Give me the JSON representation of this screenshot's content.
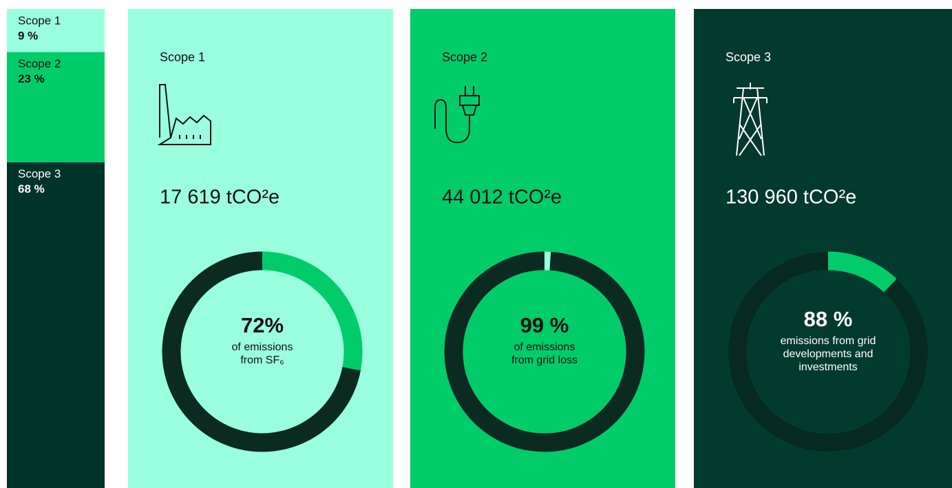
{
  "stack": {
    "segments": [
      {
        "label": "Scope 1",
        "value": 9,
        "value_label": "9 %"
      },
      {
        "label": "Scope 2",
        "value": 23,
        "value_label": "23 %"
      },
      {
        "label": "Scope 3",
        "value": 68,
        "value_label": "68 %"
      }
    ]
  },
  "cards": [
    {
      "title": "Scope 1",
      "amount": "17 619 tCO²e",
      "percent": 72,
      "percent_label": "72%",
      "caption": [
        "of emissions",
        "from SF₆"
      ]
    },
    {
      "title": "Scope 2",
      "amount": "44 012 tCO²e",
      "percent": 99,
      "percent_label": "99 %",
      "caption": [
        "of emissions",
        "from grid loss"
      ]
    },
    {
      "title": "Scope 3",
      "amount": "130 960 tCO²e",
      "percent": 88,
      "percent_label": "88 %",
      "caption": [
        "emissions from grid",
        "developments and",
        "investments"
      ]
    }
  ]
}
